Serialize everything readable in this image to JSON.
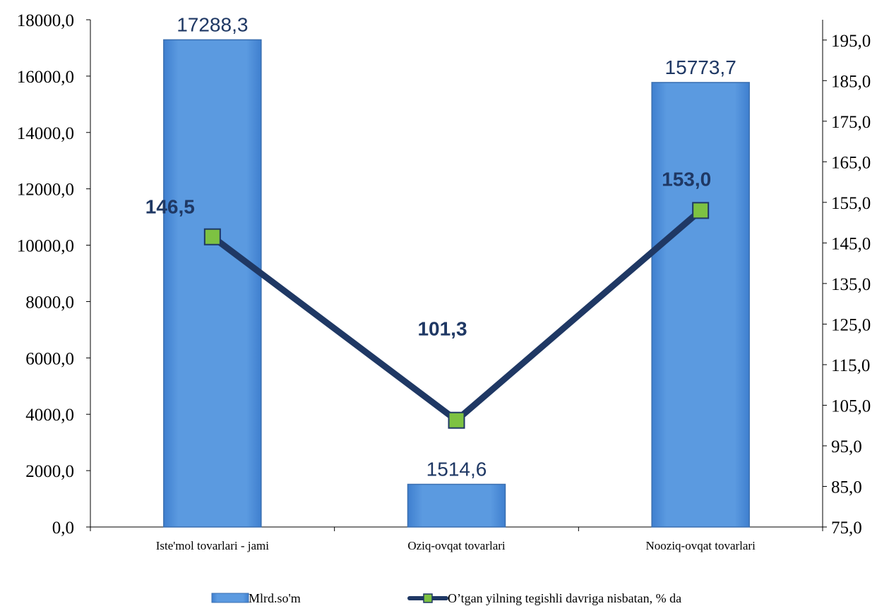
{
  "chart_data": {
    "type": "bar",
    "categories": [
      "Iste'mol tovarlari - jami",
      "Oziq-ovqat tovarlari",
      "Nooziq-ovqat tovarlari"
    ],
    "series": [
      {
        "name": "Mlrd.so'm",
        "type": "bar",
        "axis": "left",
        "values": [
          17288.3,
          1514.6,
          15773.7
        ],
        "labels": [
          "17288,3",
          "1514,6",
          "15773,7"
        ],
        "color": "#5b9ae0"
      },
      {
        "name": "O’tgan yilning tegishli davriga nisbatan, % da",
        "type": "line",
        "axis": "right",
        "values": [
          146.5,
          101.3,
          153.0
        ],
        "labels": [
          "146,5",
          "101,3",
          "153,0"
        ],
        "line_color": "#1f3864",
        "marker_color": "#7dc242"
      }
    ],
    "y_left": {
      "range": [
        0,
        18000
      ],
      "ticks": [
        0,
        2000,
        4000,
        6000,
        8000,
        10000,
        12000,
        14000,
        16000,
        18000
      ],
      "tick_labels": [
        "0,0",
        "2000,0",
        "4000,0",
        "6000,0",
        "8000,0",
        "10000,0",
        "12000,0",
        "14000,0",
        "16000,0",
        "18000,0"
      ]
    },
    "y_right": {
      "range": [
        75,
        200
      ],
      "ticks": [
        75,
        85,
        95,
        105,
        115,
        125,
        135,
        145,
        155,
        165,
        175,
        185,
        195
      ],
      "tick_labels": [
        "75,0",
        "85,0",
        "95,0",
        "105,0",
        "115,0",
        "125,0",
        "135,0",
        "145,0",
        "155,0",
        "165,0",
        "175,0",
        "185,0",
        "195,0"
      ]
    },
    "grid": false,
    "legend": "bottom"
  }
}
